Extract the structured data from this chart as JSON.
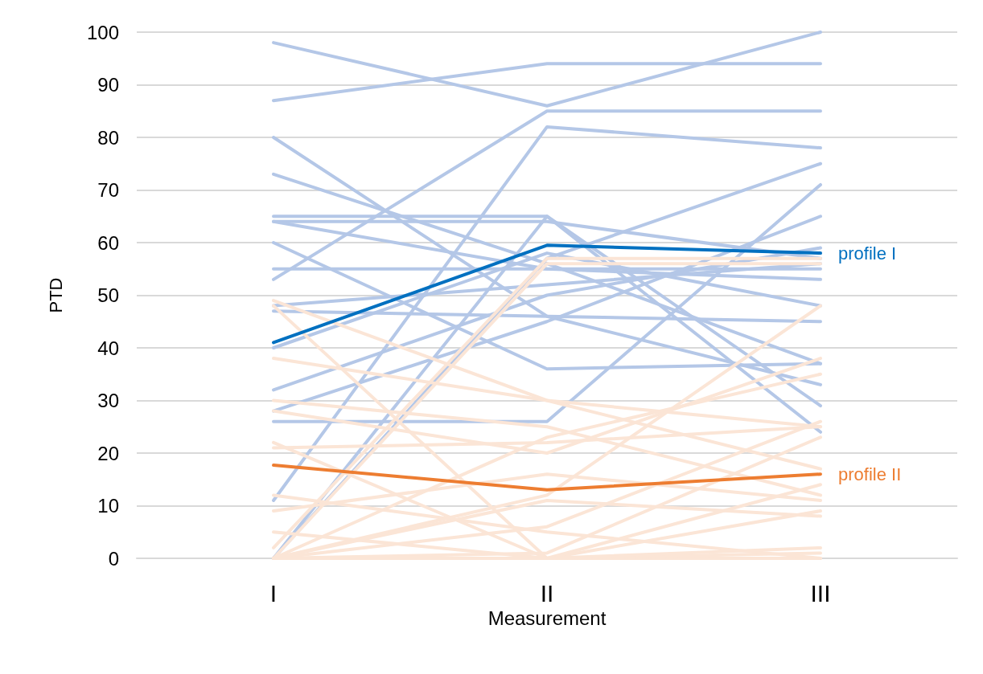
{
  "chart_data": {
    "type": "line",
    "xlabel": "Measurement",
    "ylabel": "PTD",
    "categories": [
      "I",
      "II",
      "III"
    ],
    "ylim": [
      0,
      100
    ],
    "yticks": [
      0,
      10,
      20,
      30,
      40,
      50,
      60,
      70,
      80,
      90,
      100
    ],
    "grid": "y",
    "marker": "none",
    "line_style": "solid",
    "series": [
      {
        "color": "#b4c7e7",
        "values": [
          98,
          86,
          100
        ]
      },
      {
        "color": "#b4c7e7",
        "values": [
          87,
          94,
          94
        ]
      },
      {
        "color": "#b4c7e7",
        "values": [
          80,
          46,
          33
        ]
      },
      {
        "color": "#b4c7e7",
        "values": [
          73,
          56,
          37
        ]
      },
      {
        "color": "#b4c7e7",
        "values": [
          65,
          65,
          29
        ]
      },
      {
        "color": "#b4c7e7",
        "values": [
          64,
          64,
          57
        ]
      },
      {
        "color": "#b4c7e7",
        "values": [
          64,
          55,
          53
        ]
      },
      {
        "color": "#b4c7e7",
        "values": [
          60,
          36,
          37
        ]
      },
      {
        "color": "#b4c7e7",
        "values": [
          55,
          55,
          55
        ]
      },
      {
        "color": "#b4c7e7",
        "values": [
          53,
          85,
          85
        ]
      },
      {
        "color": "#b4c7e7",
        "values": [
          48,
          52,
          56
        ]
      },
      {
        "color": "#b4c7e7",
        "values": [
          47,
          46,
          45
        ]
      },
      {
        "color": "#b4c7e7",
        "values": [
          40,
          58,
          48
        ]
      },
      {
        "color": "#b4c7e7",
        "values": [
          32,
          50,
          59
        ]
      },
      {
        "color": "#b4c7e7",
        "values": [
          28,
          45,
          65
        ]
      },
      {
        "color": "#b4c7e7",
        "values": [
          26,
          26,
          71
        ]
      },
      {
        "color": "#b4c7e7",
        "values": [
          11,
          82,
          78
        ]
      },
      {
        "color": "#b4c7e7",
        "values": [
          0,
          65,
          24
        ]
      },
      {
        "color": "#b4c7e7",
        "values": [
          0,
          57,
          75
        ]
      },
      {
        "color": "#fbe5d6",
        "values": [
          49,
          30,
          17
        ]
      },
      {
        "color": "#fbe5d6",
        "values": [
          48,
          0,
          0
        ]
      },
      {
        "color": "#fbe5d6",
        "values": [
          38,
          30,
          25
        ]
      },
      {
        "color": "#fbe5d6",
        "values": [
          30,
          25,
          12
        ]
      },
      {
        "color": "#fbe5d6",
        "values": [
          28,
          20,
          38
        ]
      },
      {
        "color": "#fbe5d6",
        "values": [
          22,
          0,
          1
        ]
      },
      {
        "color": "#fbe5d6",
        "values": [
          21,
          22,
          25
        ]
      },
      {
        "color": "#fbe5d6",
        "values": [
          12,
          5,
          0
        ]
      },
      {
        "color": "#fbe5d6",
        "values": [
          9,
          16,
          11
        ]
      },
      {
        "color": "#fbe5d6",
        "values": [
          5,
          0,
          9
        ]
      },
      {
        "color": "#fbe5d6",
        "values": [
          2,
          57,
          57
        ]
      },
      {
        "color": "#fbe5d6",
        "values": [
          0,
          56,
          56
        ]
      },
      {
        "color": "#fbe5d6",
        "values": [
          0,
          12,
          48
        ]
      },
      {
        "color": "#fbe5d6",
        "values": [
          0,
          23,
          35
        ]
      },
      {
        "color": "#fbe5d6",
        "values": [
          0,
          6,
          26
        ]
      },
      {
        "color": "#fbe5d6",
        "values": [
          0,
          0,
          14
        ]
      },
      {
        "color": "#fbe5d6",
        "values": [
          0,
          1,
          23
        ]
      },
      {
        "color": "#fbe5d6",
        "values": [
          0,
          0,
          2
        ]
      },
      {
        "color": "#fbe5d6",
        "values": [
          0,
          11,
          8
        ]
      },
      {
        "name": "profile I",
        "color": "#0070c0",
        "values": [
          41,
          59.5,
          58
        ]
      },
      {
        "name": "profile II",
        "color": "#ed7d31",
        "values": [
          17.7,
          13,
          16
        ]
      }
    ]
  }
}
